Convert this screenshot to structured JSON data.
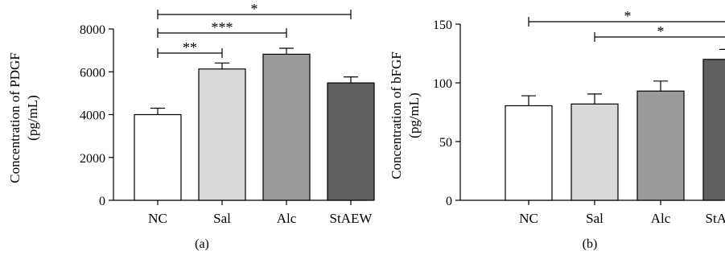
{
  "chart_data": [
    {
      "type": "bar",
      "panel_label": "(a)",
      "ylabel_line1": "Concentration of PDGF",
      "ylabel_line2": "(pg/mL)",
      "categories": [
        "NC",
        "Sal",
        "Alc",
        "StAEW"
      ],
      "values": [
        4000,
        6130,
        6820,
        5480
      ],
      "errors": [
        300,
        280,
        280,
        280
      ],
      "ylim": [
        0,
        8000
      ],
      "yticks": [
        "0",
        "2000",
        "4000",
        "6000",
        "8000"
      ],
      "colors": [
        "#ffffff",
        "#d9d9d9",
        "#9a9a9a",
        "#606060"
      ],
      "significance": [
        {
          "from": 0,
          "to": 1,
          "label": "**"
        },
        {
          "from": 0,
          "to": 2,
          "label": "***"
        },
        {
          "from": 0,
          "to": 3,
          "label": "*"
        }
      ]
    },
    {
      "type": "bar",
      "panel_label": "(b)",
      "ylabel_line1": "Concentration of bFGF",
      "ylabel_line2": "(pg/mL)",
      "categories": [
        "NC",
        "Sal",
        "Alc",
        "StAEW"
      ],
      "values": [
        80.5,
        82,
        93,
        120
      ],
      "errors": [
        8.5,
        8.5,
        8.5,
        8.5
      ],
      "ylim": [
        0,
        150
      ],
      "yticks": [
        "0",
        "50",
        "100",
        "150"
      ],
      "colors": [
        "#ffffff",
        "#d9d9d9",
        "#9a9a9a",
        "#606060"
      ],
      "significance": [
        {
          "from": 0,
          "to": 3,
          "label": "*"
        },
        {
          "from": 1,
          "to": 3,
          "label": "*"
        }
      ]
    }
  ]
}
